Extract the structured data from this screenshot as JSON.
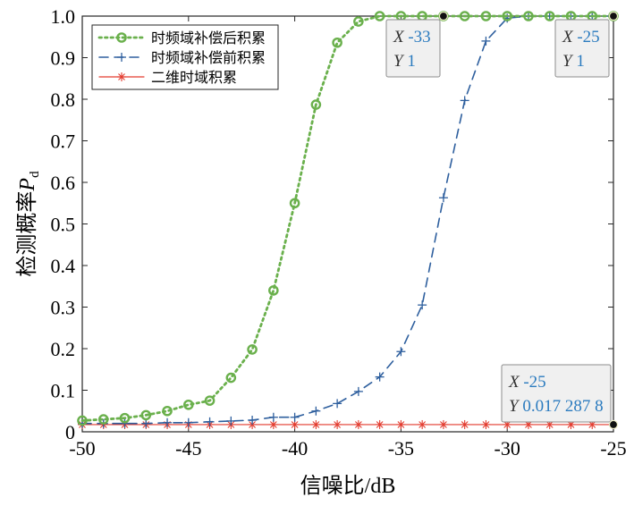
{
  "chart_data": {
    "type": "line",
    "xlabel": "信噪比/dB",
    "ylabel_main": "检测概率",
    "ylabel_symbol": "P",
    "ylabel_subscript": "d",
    "xlim": [
      -50,
      -25
    ],
    "ylim": [
      0,
      1
    ],
    "xticks": [
      -50,
      -45,
      -40,
      -35,
      -30,
      -25
    ],
    "yticks": [
      0,
      0.1,
      0.2,
      0.3,
      0.4,
      0.5,
      0.6,
      0.7,
      0.8,
      0.9,
      1.0
    ],
    "ytick_labels": [
      "0",
      "0.1",
      "0.2",
      "0.3",
      "0.4",
      "0.5",
      "0.6",
      "0.7",
      "0.8",
      "0.9",
      "1.0"
    ],
    "grid": false,
    "legend_position": "top-left",
    "x": [
      -50,
      -49,
      -48,
      -47,
      -46,
      -45,
      -44,
      -43,
      -42,
      -41,
      -40,
      -39,
      -38,
      -37,
      -36,
      -35,
      -34,
      -33,
      -32,
      -31,
      -30,
      -29,
      -28,
      -27,
      -26,
      -25
    ],
    "series": [
      {
        "name": "时频域补偿后积累",
        "color": "#6ab04c",
        "marker": "circle",
        "line": "dotted",
        "values": [
          0.027,
          0.03,
          0.033,
          0.04,
          0.05,
          0.065,
          0.075,
          0.13,
          0.198,
          0.34,
          0.55,
          0.787,
          0.936,
          0.987,
          1,
          1,
          1,
          1,
          1,
          1,
          1,
          1,
          1,
          1,
          1,
          1
        ]
      },
      {
        "name": "时频域补偿前积累",
        "color": "#2e5f9e",
        "marker": "plus",
        "line": "dashed",
        "values": [
          0.02,
          0.02,
          0.02,
          0.02,
          0.022,
          0.022,
          0.024,
          0.026,
          0.028,
          0.035,
          0.035,
          0.05,
          0.068,
          0.097,
          0.132,
          0.193,
          0.305,
          0.563,
          0.797,
          0.94,
          0.995,
          1,
          1,
          1,
          1,
          1
        ]
      },
      {
        "name": "二维时域积累",
        "color": "#e33b2e",
        "marker": "asterisk",
        "line": "solid",
        "values": [
          0.0173,
          0.0173,
          0.0173,
          0.0173,
          0.0173,
          0.0173,
          0.0173,
          0.0173,
          0.0173,
          0.0173,
          0.0173,
          0.0173,
          0.0173,
          0.0173,
          0.0173,
          0.0173,
          0.0173,
          0.0173,
          0.0173,
          0.0173,
          0.0173,
          0.0173,
          0.0173,
          0.0173,
          0.0173,
          0.0173
        ]
      }
    ],
    "datatips": [
      {
        "x_label": "X",
        "x_value": "-33",
        "y_label": "Y",
        "y_value": "1",
        "point_x": -33,
        "point_y": 1,
        "anchor": "below-left"
      },
      {
        "x_label": "X",
        "x_value": "-25",
        "y_label": "Y",
        "y_value": "1",
        "point_x": -25,
        "point_y": 1,
        "anchor": "below-left"
      },
      {
        "x_label": "X",
        "x_value": "-25",
        "y_label": "Y",
        "y_value": "0.017 287 8",
        "point_x": -25,
        "point_y": 0.0172878,
        "anchor": "above-left"
      }
    ]
  }
}
